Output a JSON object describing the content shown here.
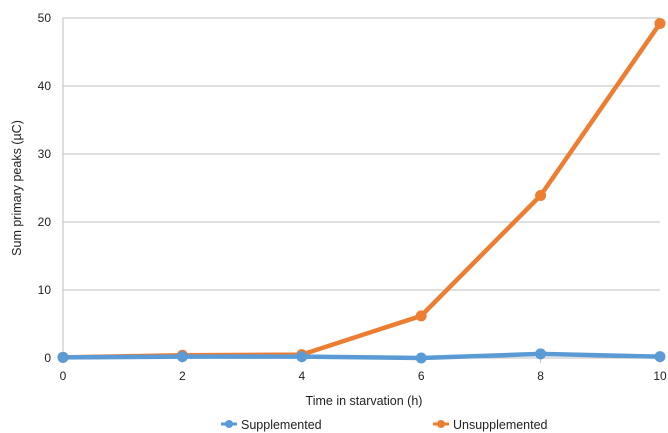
{
  "chart_data": {
    "type": "line",
    "xlabel": "Time in starvation (h)",
    "ylabel": "Sum primary peaks (µC)",
    "x": [
      0,
      2,
      4,
      6,
      8,
      10
    ],
    "xlim": [
      0,
      10
    ],
    "ylim": [
      0,
      50
    ],
    "xticks": [
      "0",
      "2",
      "4",
      "6",
      "8",
      "10"
    ],
    "yticks": [
      "0",
      "10",
      "20",
      "30",
      "40",
      "50"
    ],
    "grid": "horizontal",
    "legend_position": "bottom",
    "series": [
      {
        "name": "Supplemented",
        "color": "#5b9bd5",
        "values": [
          0.1,
          0.2,
          0.2,
          0.0,
          0.6,
          0.2
        ]
      },
      {
        "name": "Unsupplemented",
        "color": "#ed7d31",
        "values": [
          0.1,
          0.4,
          0.5,
          6.2,
          23.9,
          49.2
        ]
      }
    ]
  }
}
